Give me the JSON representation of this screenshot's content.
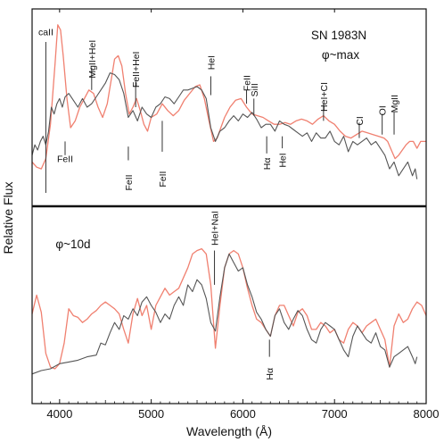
{
  "chart_data": {
    "type": "line",
    "xlabel": "Wavelength (Å)",
    "ylabel": "Relative Flux",
    "xlim": [
      3700,
      8000
    ],
    "x_ticks": [
      "4000",
      "5000",
      "6000",
      "7000",
      "8000"
    ],
    "x_tick_values": [
      4000,
      5000,
      6000,
      7000,
      8000
    ],
    "grid": false,
    "colors": {
      "observed": "#555555",
      "model": "#f08070",
      "axes": "#111111"
    },
    "panels": [
      {
        "id": "max",
        "title": "SN  1983N",
        "subtitle": "φ~max",
        "ylim": [
          0,
          1
        ],
        "series": [
          {
            "key": "observed",
            "color": "#555555",
            "x": [
              3700,
              3730,
              3760,
              3790,
              3820,
              3850,
              3880,
              3910,
              3940,
              3970,
              4000,
              4030,
              4060,
              4100,
              4150,
              4200,
              4250,
              4300,
              4350,
              4400,
              4450,
              4500,
              4550,
              4600,
              4650,
              4700,
              4750,
              4800,
              4850,
              4900,
              4950,
              5000,
              5050,
              5100,
              5150,
              5200,
              5250,
              5300,
              5350,
              5400,
              5450,
              5500,
              5550,
              5600,
              5650,
              5700,
              5750,
              5800,
              5850,
              5900,
              5950,
              6000,
              6050,
              6100,
              6150,
              6200,
              6250,
              6300,
              6350,
              6400,
              6450,
              6500,
              6550,
              6600,
              6650,
              6700,
              6750,
              6800,
              6850,
              6900,
              6950,
              7000,
              7050,
              7100,
              7150,
              7200,
              7250,
              7300,
              7350,
              7400,
              7450,
              7500,
              7550,
              7600,
              7650,
              7700,
              7750,
              7800,
              7850,
              7880,
              7900
            ],
            "y": [
              0.22,
              0.28,
              0.25,
              0.3,
              0.33,
              0.28,
              0.36,
              0.5,
              0.46,
              0.52,
              0.55,
              0.5,
              0.56,
              0.58,
              0.54,
              0.5,
              0.55,
              0.5,
              0.52,
              0.56,
              0.6,
              0.64,
              0.7,
              0.69,
              0.66,
              0.58,
              0.44,
              0.48,
              0.42,
              0.5,
              0.46,
              0.44,
              0.5,
              0.52,
              0.56,
              0.55,
              0.52,
              0.56,
              0.6,
              0.6,
              0.61,
              0.62,
              0.6,
              0.55,
              0.38,
              0.3,
              0.36,
              0.38,
              0.42,
              0.45,
              0.42,
              0.46,
              0.44,
              0.47,
              0.43,
              0.38,
              0.4,
              0.4,
              0.36,
              0.42,
              0.4,
              0.39,
              0.37,
              0.35,
              0.33,
              0.35,
              0.3,
              0.35,
              0.32,
              0.32,
              0.36,
              0.3,
              0.28,
              0.33,
              0.24,
              0.3,
              0.28,
              0.3,
              0.32,
              0.28,
              0.3,
              0.26,
              0.22,
              0.14,
              0.18,
              0.1,
              0.14,
              0.18,
              0.1,
              0.14,
              0.08
            ]
          },
          {
            "key": "model",
            "color": "#f08070",
            "x": [
              3700,
              3750,
              3800,
              3850,
              3900,
              3950,
              3980,
              4010,
              4040,
              4080,
              4120,
              4170,
              4220,
              4270,
              4320,
              4370,
              4420,
              4470,
              4520,
              4570,
              4600,
              4640,
              4680,
              4720,
              4760,
              4800,
              4840,
              4880,
              4920,
              4960,
              5000,
              5060,
              5120,
              5180,
              5240,
              5300,
              5360,
              5420,
              5480,
              5530,
              5580,
              5630,
              5680,
              5720,
              5760,
              5800,
              5860,
              5920,
              5980,
              6040,
              6100,
              6160,
              6220,
              6280,
              6340,
              6400,
              6460,
              6520,
              6580,
              6640,
              6700,
              6760,
              6820,
              6880,
              6940,
              7000,
              7060,
              7120,
              7180,
              7240,
              7300,
              7360,
              7420,
              7480,
              7540,
              7580,
              7620,
              7660,
              7700,
              7740,
              7780,
              7820,
              7860,
              7900,
              7940,
              8000
            ],
            "y": [
              0.18,
              0.15,
              0.14,
              0.2,
              0.4,
              0.75,
              0.98,
              0.95,
              0.8,
              0.55,
              0.38,
              0.42,
              0.5,
              0.55,
              0.6,
              0.58,
              0.5,
              0.44,
              0.52,
              0.68,
              0.78,
              0.8,
              0.74,
              0.58,
              0.46,
              0.5,
              0.55,
              0.48,
              0.4,
              0.36,
              0.44,
              0.46,
              0.52,
              0.48,
              0.45,
              0.48,
              0.54,
              0.58,
              0.62,
              0.63,
              0.55,
              0.42,
              0.3,
              0.32,
              0.38,
              0.44,
              0.5,
              0.54,
              0.55,
              0.5,
              0.46,
              0.45,
              0.44,
              0.42,
              0.4,
              0.4,
              0.41,
              0.4,
              0.42,
              0.43,
              0.42,
              0.4,
              0.43,
              0.45,
              0.42,
              0.4,
              0.36,
              0.33,
              0.32,
              0.34,
              0.36,
              0.35,
              0.34,
              0.33,
              0.32,
              0.3,
              0.25,
              0.2,
              0.22,
              0.25,
              0.28,
              0.3,
              0.3,
              0.26,
              0.3,
              0.3
            ]
          }
        ],
        "line_ids": [
          {
            "label": "caII",
            "x": 3850,
            "y_text": 0.92,
            "tick": [
              0.88,
              0.0
            ],
            "above": true
          },
          {
            "label": "MgII+HeI",
            "x": 4350,
            "y_text": 0.78,
            "tick": [
              0.73,
              0.6
            ],
            "above": true,
            "rotate": true
          },
          {
            "label": "FeII",
            "x": 4060,
            "y_text": 0.18,
            "tick": [
              0.3,
              0.22
            ],
            "above": false
          },
          {
            "label": "FeII+HeI",
            "x": 4830,
            "y_text": 0.72,
            "tick": [
              0.65,
              0.5
            ],
            "above": true,
            "rotate": true
          },
          {
            "label": "FeII",
            "x": 4750,
            "y_text": 0.06,
            "tick": [
              0.27,
              0.19
            ],
            "above": false,
            "rotate": true
          },
          {
            "label": "FeII",
            "x": 5120,
            "y_text": 0.08,
            "tick": [
              0.42,
              0.24
            ],
            "above": false,
            "rotate": true
          },
          {
            "label": "HeI",
            "x": 5650,
            "y_text": 0.76,
            "tick": [
              0.68,
              0.57
            ],
            "above": true,
            "rotate": true
          },
          {
            "label": "FeII",
            "x": 6040,
            "y_text": 0.64,
            "tick": [
              0.6,
              0.52
            ],
            "above": true,
            "rotate": true
          },
          {
            "label": "SiII",
            "x": 6120,
            "y_text": 0.6,
            "tick": [
              0.55,
              0.45
            ],
            "above": true,
            "rotate": true
          },
          {
            "label": "Hα",
            "x": 6260,
            "y_text": 0.17,
            "tick": [
              0.33,
              0.23
            ],
            "above": false,
            "rotate": true
          },
          {
            "label": "HeI",
            "x": 6430,
            "y_text": 0.19,
            "tick": [
              0.33,
              0.26
            ],
            "above": false,
            "rotate": true
          },
          {
            "label": "HeI+CI",
            "x": 6880,
            "y_text": 0.56,
            "tick": [
              0.52,
              0.42
            ],
            "above": true,
            "rotate": true
          },
          {
            "label": "CI",
            "x": 7270,
            "y_text": 0.42,
            "tick": [
              0.41,
              0.32
            ],
            "above": true,
            "rotate": true
          },
          {
            "label": "OI",
            "x": 7520,
            "y_text": 0.48,
            "tick": [
              0.46,
              0.34
            ],
            "above": true,
            "rotate": true
          },
          {
            "label": "MgII",
            "x": 7650,
            "y_text": 0.52,
            "tick": [
              0.47,
              0.34
            ],
            "above": true,
            "rotate": true
          }
        ]
      },
      {
        "id": "10d",
        "title": "",
        "subtitle": "φ~10d",
        "ylim": [
          0,
          1
        ],
        "series": [
          {
            "key": "observed",
            "color": "#555555",
            "x": [
              3700,
              3800,
              3900,
              4000,
              4100,
              4200,
              4300,
              4400,
              4450,
              4500,
              4550,
              4600,
              4650,
              4700,
              4750,
              4800,
              4850,
              4900,
              4950,
              5000,
              5050,
              5100,
              5150,
              5200,
              5250,
              5300,
              5350,
              5400,
              5450,
              5500,
              5550,
              5600,
              5650,
              5700,
              5750,
              5800,
              5850,
              5900,
              5950,
              6000,
              6050,
              6100,
              6150,
              6200,
              6250,
              6300,
              6350,
              6400,
              6450,
              6500,
              6550,
              6600,
              6650,
              6700,
              6750,
              6800,
              6850,
              6900,
              6950,
              7000,
              7050,
              7100,
              7150,
              7200,
              7250,
              7300,
              7350,
              7400,
              7450,
              7500,
              7550,
              7600,
              7650,
              7700,
              7750,
              7800,
              7850,
              7880,
              7900
            ],
            "y": [
              0.1,
              0.12,
              0.13,
              0.16,
              0.17,
              0.18,
              0.2,
              0.21,
              0.28,
              0.27,
              0.34,
              0.4,
              0.36,
              0.44,
              0.42,
              0.48,
              0.44,
              0.52,
              0.55,
              0.5,
              0.46,
              0.4,
              0.45,
              0.42,
              0.5,
              0.55,
              0.5,
              0.62,
              0.58,
              0.65,
              0.62,
              0.54,
              0.4,
              0.35,
              0.55,
              0.72,
              0.8,
              0.75,
              0.7,
              0.72,
              0.62,
              0.55,
              0.46,
              0.42,
              0.36,
              0.32,
              0.44,
              0.48,
              0.4,
              0.36,
              0.42,
              0.47,
              0.44,
              0.36,
              0.3,
              0.28,
              0.36,
              0.4,
              0.38,
              0.36,
              0.3,
              0.24,
              0.2,
              0.32,
              0.38,
              0.34,
              0.3,
              0.28,
              0.34,
              0.26,
              0.24,
              0.14,
              0.2,
              0.22,
              0.24,
              0.26,
              0.2,
              0.16,
              0.2
            ]
          },
          {
            "key": "model",
            "color": "#f08070",
            "x": [
              3700,
              3750,
              3800,
              3850,
              3900,
              3950,
              4000,
              4050,
              4100,
              4150,
              4200,
              4250,
              4300,
              4350,
              4400,
              4450,
              4500,
              4550,
              4600,
              4650,
              4700,
              4750,
              4800,
              4850,
              4900,
              4950,
              5000,
              5050,
              5100,
              5150,
              5200,
              5250,
              5300,
              5350,
              5400,
              5450,
              5500,
              5550,
              5600,
              5650,
              5700,
              5750,
              5800,
              5850,
              5900,
              5950,
              6000,
              6050,
              6100,
              6150,
              6200,
              6250,
              6300,
              6350,
              6400,
              6450,
              6500,
              6550,
              6600,
              6650,
              6700,
              6750,
              6800,
              6850,
              6900,
              6950,
              7000,
              7050,
              7100,
              7150,
              7200,
              7250,
              7300,
              7350,
              7400,
              7450,
              7500,
              7550,
              7600,
              7650,
              7700,
              7750,
              7800,
              7850,
              7900,
              7950,
              8000
            ],
            "y": [
              0.45,
              0.56,
              0.46,
              0.22,
              0.14,
              0.13,
              0.16,
              0.28,
              0.48,
              0.44,
              0.43,
              0.4,
              0.42,
              0.45,
              0.47,
              0.5,
              0.52,
              0.5,
              0.48,
              0.45,
              0.36,
              0.28,
              0.45,
              0.54,
              0.44,
              0.5,
              0.36,
              0.5,
              0.55,
              0.6,
              0.56,
              0.58,
              0.6,
              0.66,
              0.72,
              0.8,
              0.82,
              0.83,
              0.8,
              0.62,
              0.25,
              0.5,
              0.72,
              0.8,
              0.82,
              0.8,
              0.72,
              0.6,
              0.5,
              0.42,
              0.4,
              0.36,
              0.32,
              0.44,
              0.5,
              0.5,
              0.44,
              0.38,
              0.46,
              0.48,
              0.44,
              0.36,
              0.36,
              0.4,
              0.38,
              0.34,
              0.36,
              0.3,
              0.28,
              0.36,
              0.4,
              0.38,
              0.34,
              0.38,
              0.4,
              0.42,
              0.36,
              0.3,
              0.14,
              0.38,
              0.45,
              0.4,
              0.42,
              0.48,
              0.52,
              0.5,
              0.44
            ]
          }
        ],
        "line_ids": [
          {
            "label": "HeI+NaI",
            "x": 5690,
            "y_text": 0.95,
            "tick": [
              0.82,
              0.62
            ],
            "above": true,
            "rotate": true
          },
          {
            "label": "Hα",
            "x": 6290,
            "y_text": 0.1,
            "tick": [
              0.3,
              0.2
            ],
            "above": false,
            "rotate": true
          }
        ]
      }
    ]
  }
}
